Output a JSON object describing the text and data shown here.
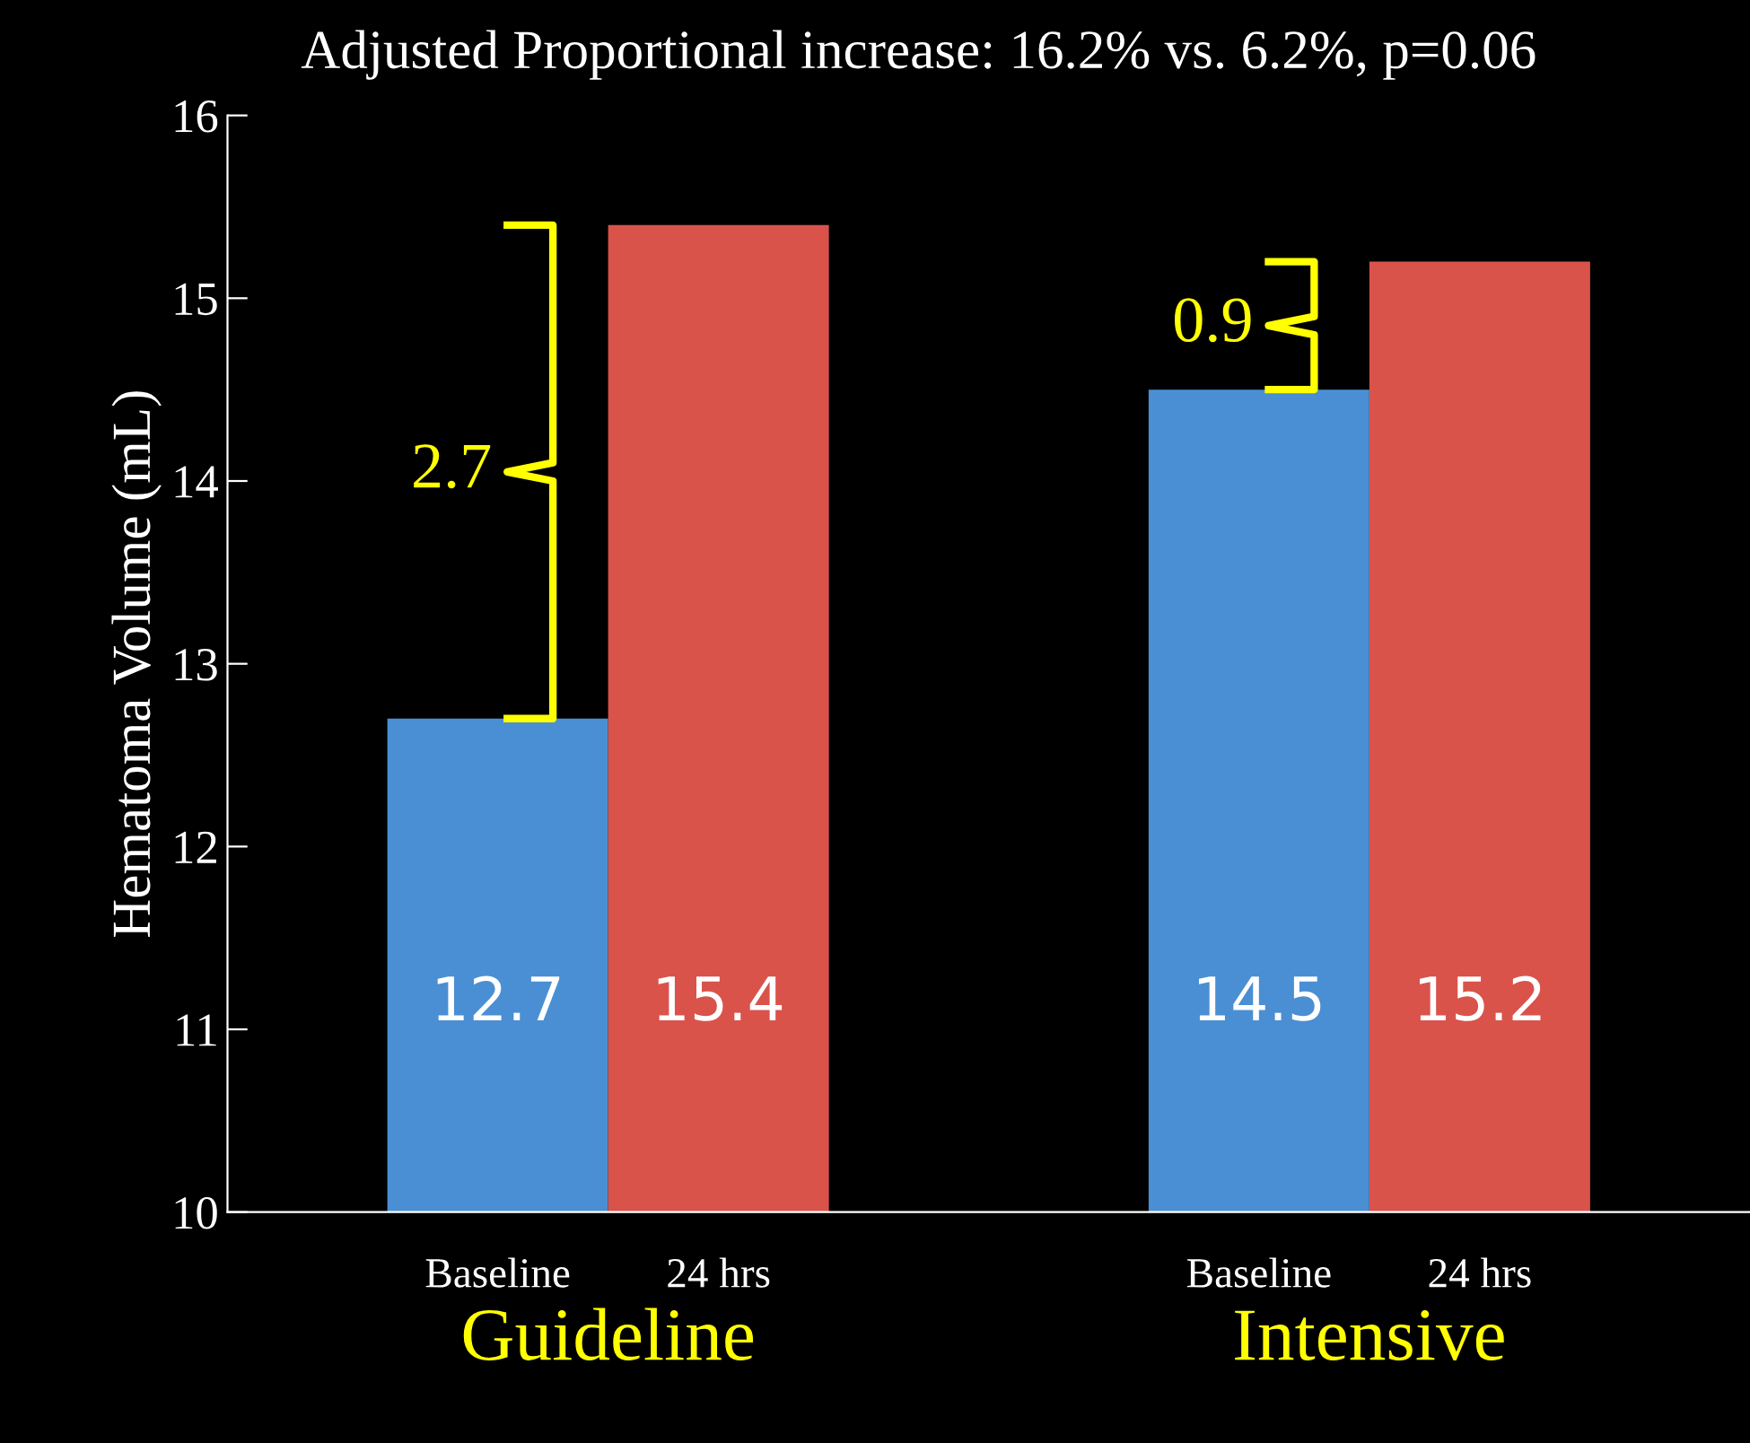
{
  "chart_data": {
    "type": "bar",
    "title": "Adjusted Proportional increase: 16.2% vs. 6.2%, p=0.06",
    "ylabel": "Hematoma Volume (mL)",
    "categories": [
      "Guideline",
      "Intensive"
    ],
    "series": [
      {
        "name": "Baseline",
        "color": "#4a8fd3",
        "values": [
          12.7,
          14.5
        ]
      },
      {
        "name": "24 hrs",
        "color": "#d9534b",
        "values": [
          15.4,
          15.2
        ]
      }
    ],
    "ylim": [
      10,
      16
    ],
    "yticks": [
      10,
      11,
      12,
      13,
      14,
      15,
      16
    ],
    "data_labels": true,
    "grid": false,
    "legend": false,
    "annotations": [
      {
        "text": "2.7",
        "x": "Guideline",
        "y": 14.05
      },
      {
        "text": "0.9",
        "x": "Intensive",
        "y": 14.85
      }
    ]
  }
}
